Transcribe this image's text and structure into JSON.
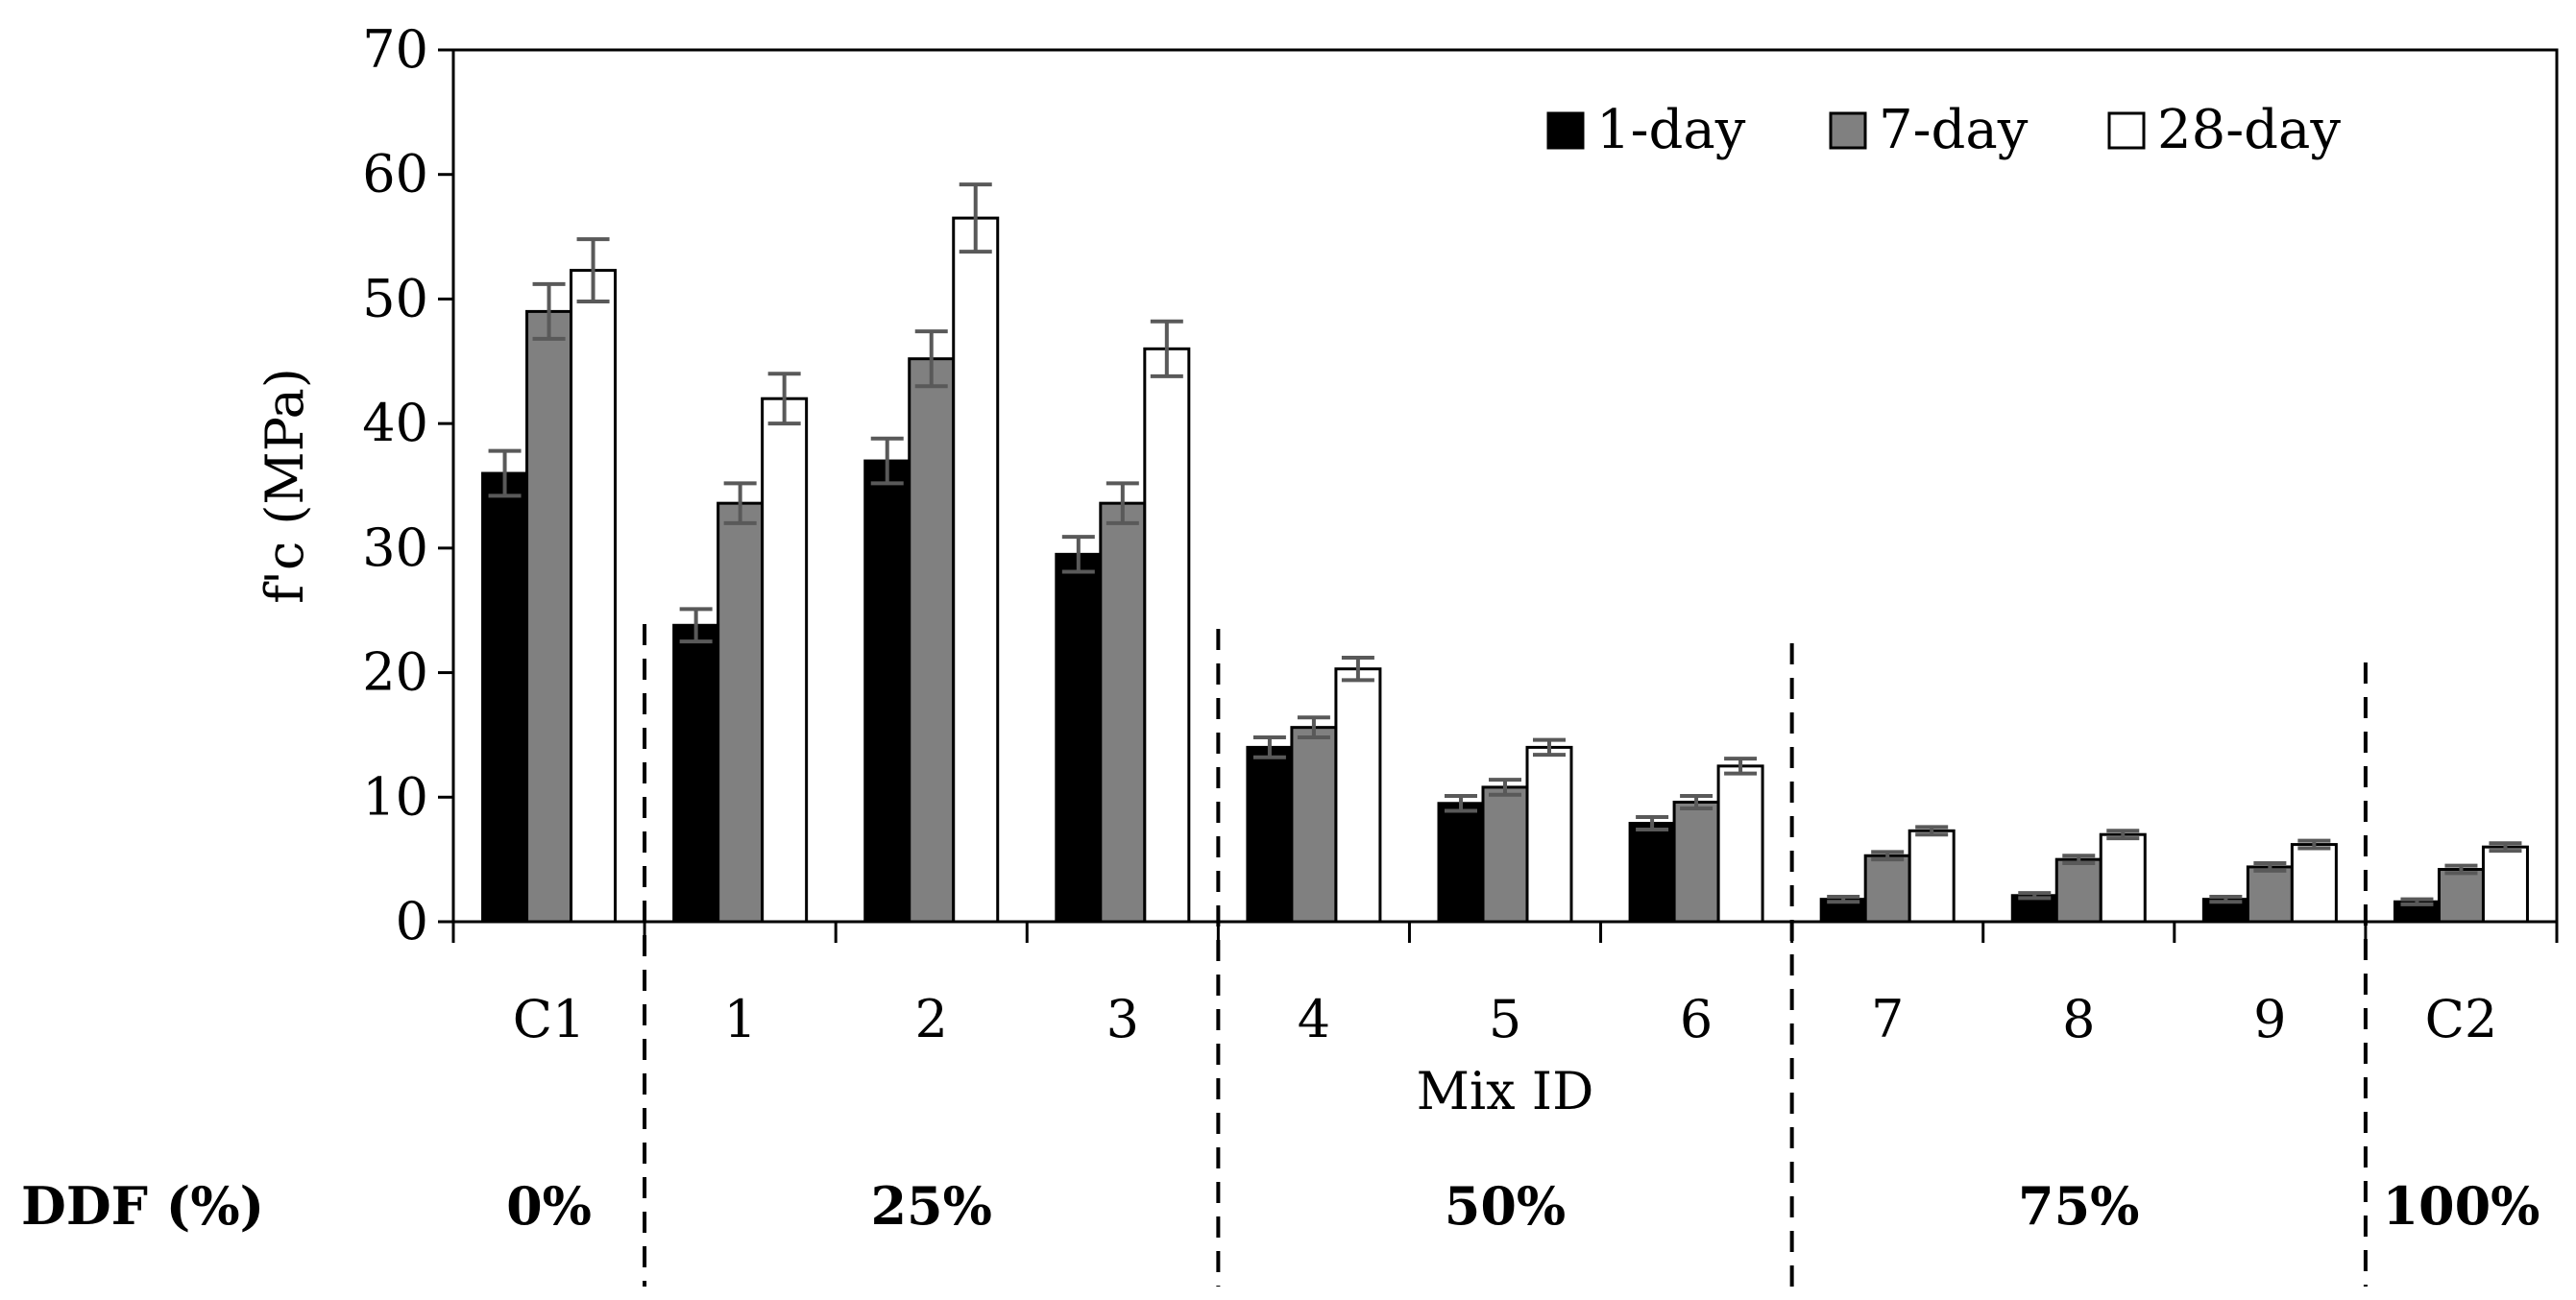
{
  "chart_data": {
    "type": "bar",
    "title": "",
    "xlabel": "Mix ID",
    "ylabel": "f'c (MPa)",
    "ylim": [
      0,
      70
    ],
    "yticks": [
      "0",
      "10",
      "20",
      "30",
      "40",
      "50",
      "60",
      "70"
    ],
    "categories": [
      "C1",
      "1",
      "2",
      "3",
      "4",
      "5",
      "6",
      "7",
      "8",
      "9",
      "C2"
    ],
    "series": [
      {
        "name": "1-day",
        "color": "#000000",
        "values": [
          36.0,
          23.8,
          37.0,
          29.5,
          14.0,
          9.5,
          7.9,
          1.8,
          2.1,
          1.8,
          1.6
        ],
        "errors": [
          1.8,
          1.3,
          1.8,
          1.4,
          0.8,
          0.6,
          0.5,
          0.2,
          0.2,
          0.2,
          0.2
        ]
      },
      {
        "name": "7-day",
        "color": "#808080",
        "values": [
          49.0,
          33.6,
          45.2,
          33.6,
          15.6,
          10.8,
          9.6,
          5.3,
          5.0,
          4.4,
          4.2
        ],
        "errors": [
          2.2,
          1.6,
          2.2,
          1.6,
          0.8,
          0.6,
          0.5,
          0.3,
          0.3,
          0.3,
          0.3
        ]
      },
      {
        "name": "28-day",
        "color": "#ffffff",
        "values": [
          52.3,
          42.0,
          56.5,
          46.0,
          20.3,
          14.0,
          12.5,
          7.3,
          7.0,
          6.2,
          6.0
        ],
        "errors": [
          2.5,
          2.0,
          2.7,
          2.2,
          0.9,
          0.6,
          0.6,
          0.3,
          0.3,
          0.3,
          0.3
        ]
      }
    ],
    "legend": {
      "position": "top-right",
      "entries": [
        "1-day",
        "7-day",
        "28-day"
      ]
    },
    "groups_label": "DDF (%)",
    "groups": [
      {
        "label": "0%",
        "categories": [
          "C1"
        ]
      },
      {
        "label": "25%",
        "categories": [
          "1",
          "2",
          "3"
        ]
      },
      {
        "label": "50%",
        "categories": [
          "4",
          "5",
          "6"
        ]
      },
      {
        "label": "75%",
        "categories": [
          "7",
          "8",
          "9"
        ]
      },
      {
        "label": "100%",
        "categories": [
          "C2"
        ]
      }
    ],
    "error_bar_color": "#595959",
    "grid": false
  }
}
